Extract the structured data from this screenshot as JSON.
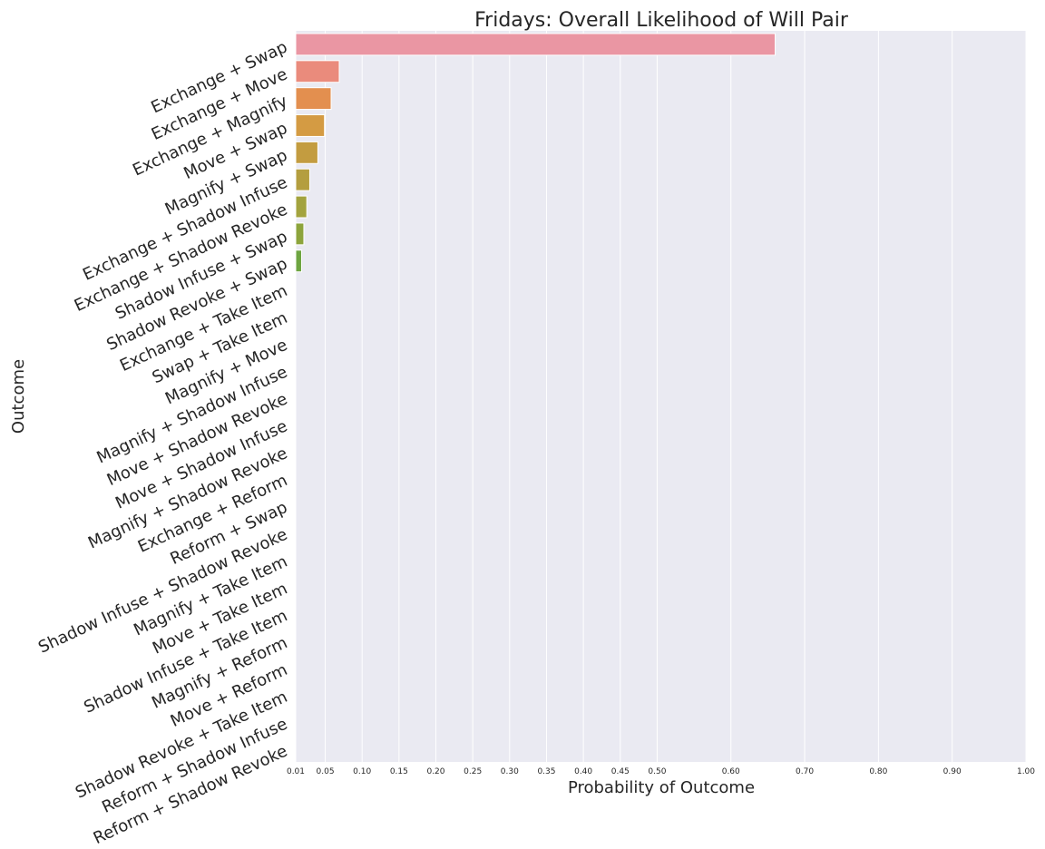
{
  "chart_data": {
    "type": "bar",
    "orientation": "horizontal",
    "title": "Fridays: Overall Likelihood of Will Pair",
    "xlabel": "Probability of Outcome",
    "ylabel": "Outcome",
    "xlim": [
      0.01,
      1.0
    ],
    "xticks": [
      0.01,
      0.05,
      0.1,
      0.15,
      0.2,
      0.25,
      0.3,
      0.35,
      0.4,
      0.45,
      0.5,
      0.6,
      0.7,
      0.8,
      0.9,
      1.0
    ],
    "xtick_labels": [
      "0.01",
      "0.05",
      "0.10",
      "0.15",
      "0.20",
      "0.25",
      "0.30",
      "0.35",
      "0.40",
      "0.45",
      "0.50",
      "0.60",
      "0.70",
      "0.80",
      "0.90",
      "1.00"
    ],
    "grid": true,
    "background_color": "#eaeaf2",
    "categories": [
      "Exchange + Swap",
      "Exchange + Move",
      "Exchange + Magnify",
      "Move + Swap",
      "Magnify + Swap",
      "Exchange + Shadow Infuse",
      "Exchange + Shadow Revoke",
      "Shadow Infuse + Swap",
      "Shadow Revoke + Swap",
      "Exchange + Take Item",
      "Swap + Take Item",
      "Magnify + Move",
      "Magnify + Shadow Infuse",
      "Move + Shadow Revoke",
      "Move + Shadow Infuse",
      "Magnify + Shadow Revoke",
      "Exchange + Reform",
      "Reform + Swap",
      "Shadow Infuse + Shadow Revoke",
      "Magnify + Take Item",
      "Move + Take Item",
      "Shadow Infuse + Take Item",
      "Magnify + Reform",
      "Move + Reform",
      "Shadow Revoke + Take Item",
      "Reform + Shadow Infuse",
      "Reform + Shadow Revoke"
    ],
    "values": [
      0.66,
      0.069,
      0.058,
      0.049,
      0.04,
      0.029,
      0.025,
      0.021,
      0.018,
      0.007,
      0.004,
      0.003,
      0.002,
      0.002,
      0.002,
      0.0,
      0.0,
      0.0,
      0.0,
      0.0,
      0.0,
      0.0,
      0.0,
      0.0,
      0.0,
      0.0,
      0.0
    ],
    "colors": [
      "#ea96a3",
      "#ea8b7c",
      "#e38f4f",
      "#d49b43",
      "#c39c40",
      "#b49e3f",
      "#a3a33e",
      "#8da43c",
      "#6ea541",
      "#4ea24c",
      "#47a373",
      "#46a389",
      "#45a397",
      "#44a3a3",
      "#46a5b0",
      "#48a8bf",
      "#53abd2",
      "#6aa9e0",
      "#8aa3e8",
      "#a39cef",
      "#b797ef",
      "#c890ea",
      "#d98be1",
      "#e586d5",
      "#ea8cc3",
      "#ea90b4",
      "#ea96a3"
    ]
  }
}
